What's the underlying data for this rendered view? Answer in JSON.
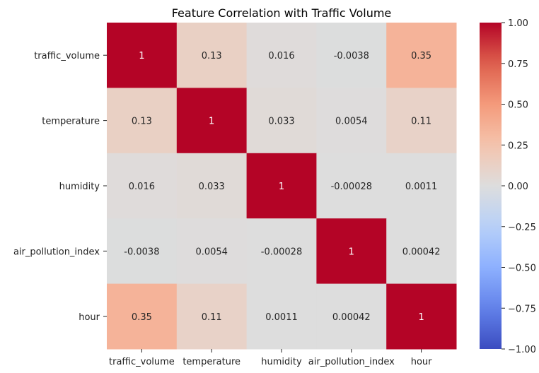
{
  "chart_data": {
    "type": "heatmap",
    "title": "Feature Correlation with Traffic Volume",
    "row_labels": [
      "traffic_volume",
      "temperature",
      "humidity",
      "air_pollution_index",
      "hour"
    ],
    "col_labels": [
      "traffic_volume",
      "temperature",
      "humidity",
      "air_pollution_index",
      "hour"
    ],
    "values": [
      [
        1,
        0.13,
        0.016,
        -0.0038,
        0.35
      ],
      [
        0.13,
        1,
        0.033,
        0.0054,
        0.11
      ],
      [
        0.016,
        0.033,
        1,
        -0.00028,
        0.0011
      ],
      [
        -0.0038,
        0.0054,
        -0.00028,
        1,
        0.00042
      ],
      [
        0.35,
        0.11,
        0.0011,
        0.00042,
        1
      ]
    ],
    "cell_text": [
      [
        "1",
        "0.13",
        "0.016",
        "-0.0038",
        "0.35"
      ],
      [
        "0.13",
        "1",
        "0.033",
        "0.0054",
        "0.11"
      ],
      [
        "0.016",
        "0.033",
        "1",
        "-0.00028",
        "0.0011"
      ],
      [
        "-0.0038",
        "0.0054",
        "-0.00028",
        "1",
        "0.00042"
      ],
      [
        "0.35",
        "0.11",
        "0.0011",
        "0.00042",
        "1"
      ]
    ],
    "colormap": "coolwarm",
    "vmin": -1,
    "vmax": 1,
    "colorbar_ticks": [
      "1.00",
      "0.75",
      "0.50",
      "0.25",
      "0.00",
      "−0.25",
      "−0.50",
      "−0.75",
      "−1.00"
    ],
    "colorbar_tick_values": [
      1,
      0.75,
      0.5,
      0.25,
      0,
      -0.25,
      -0.5,
      -0.75,
      -1
    ],
    "legend": "colorbar-right"
  }
}
